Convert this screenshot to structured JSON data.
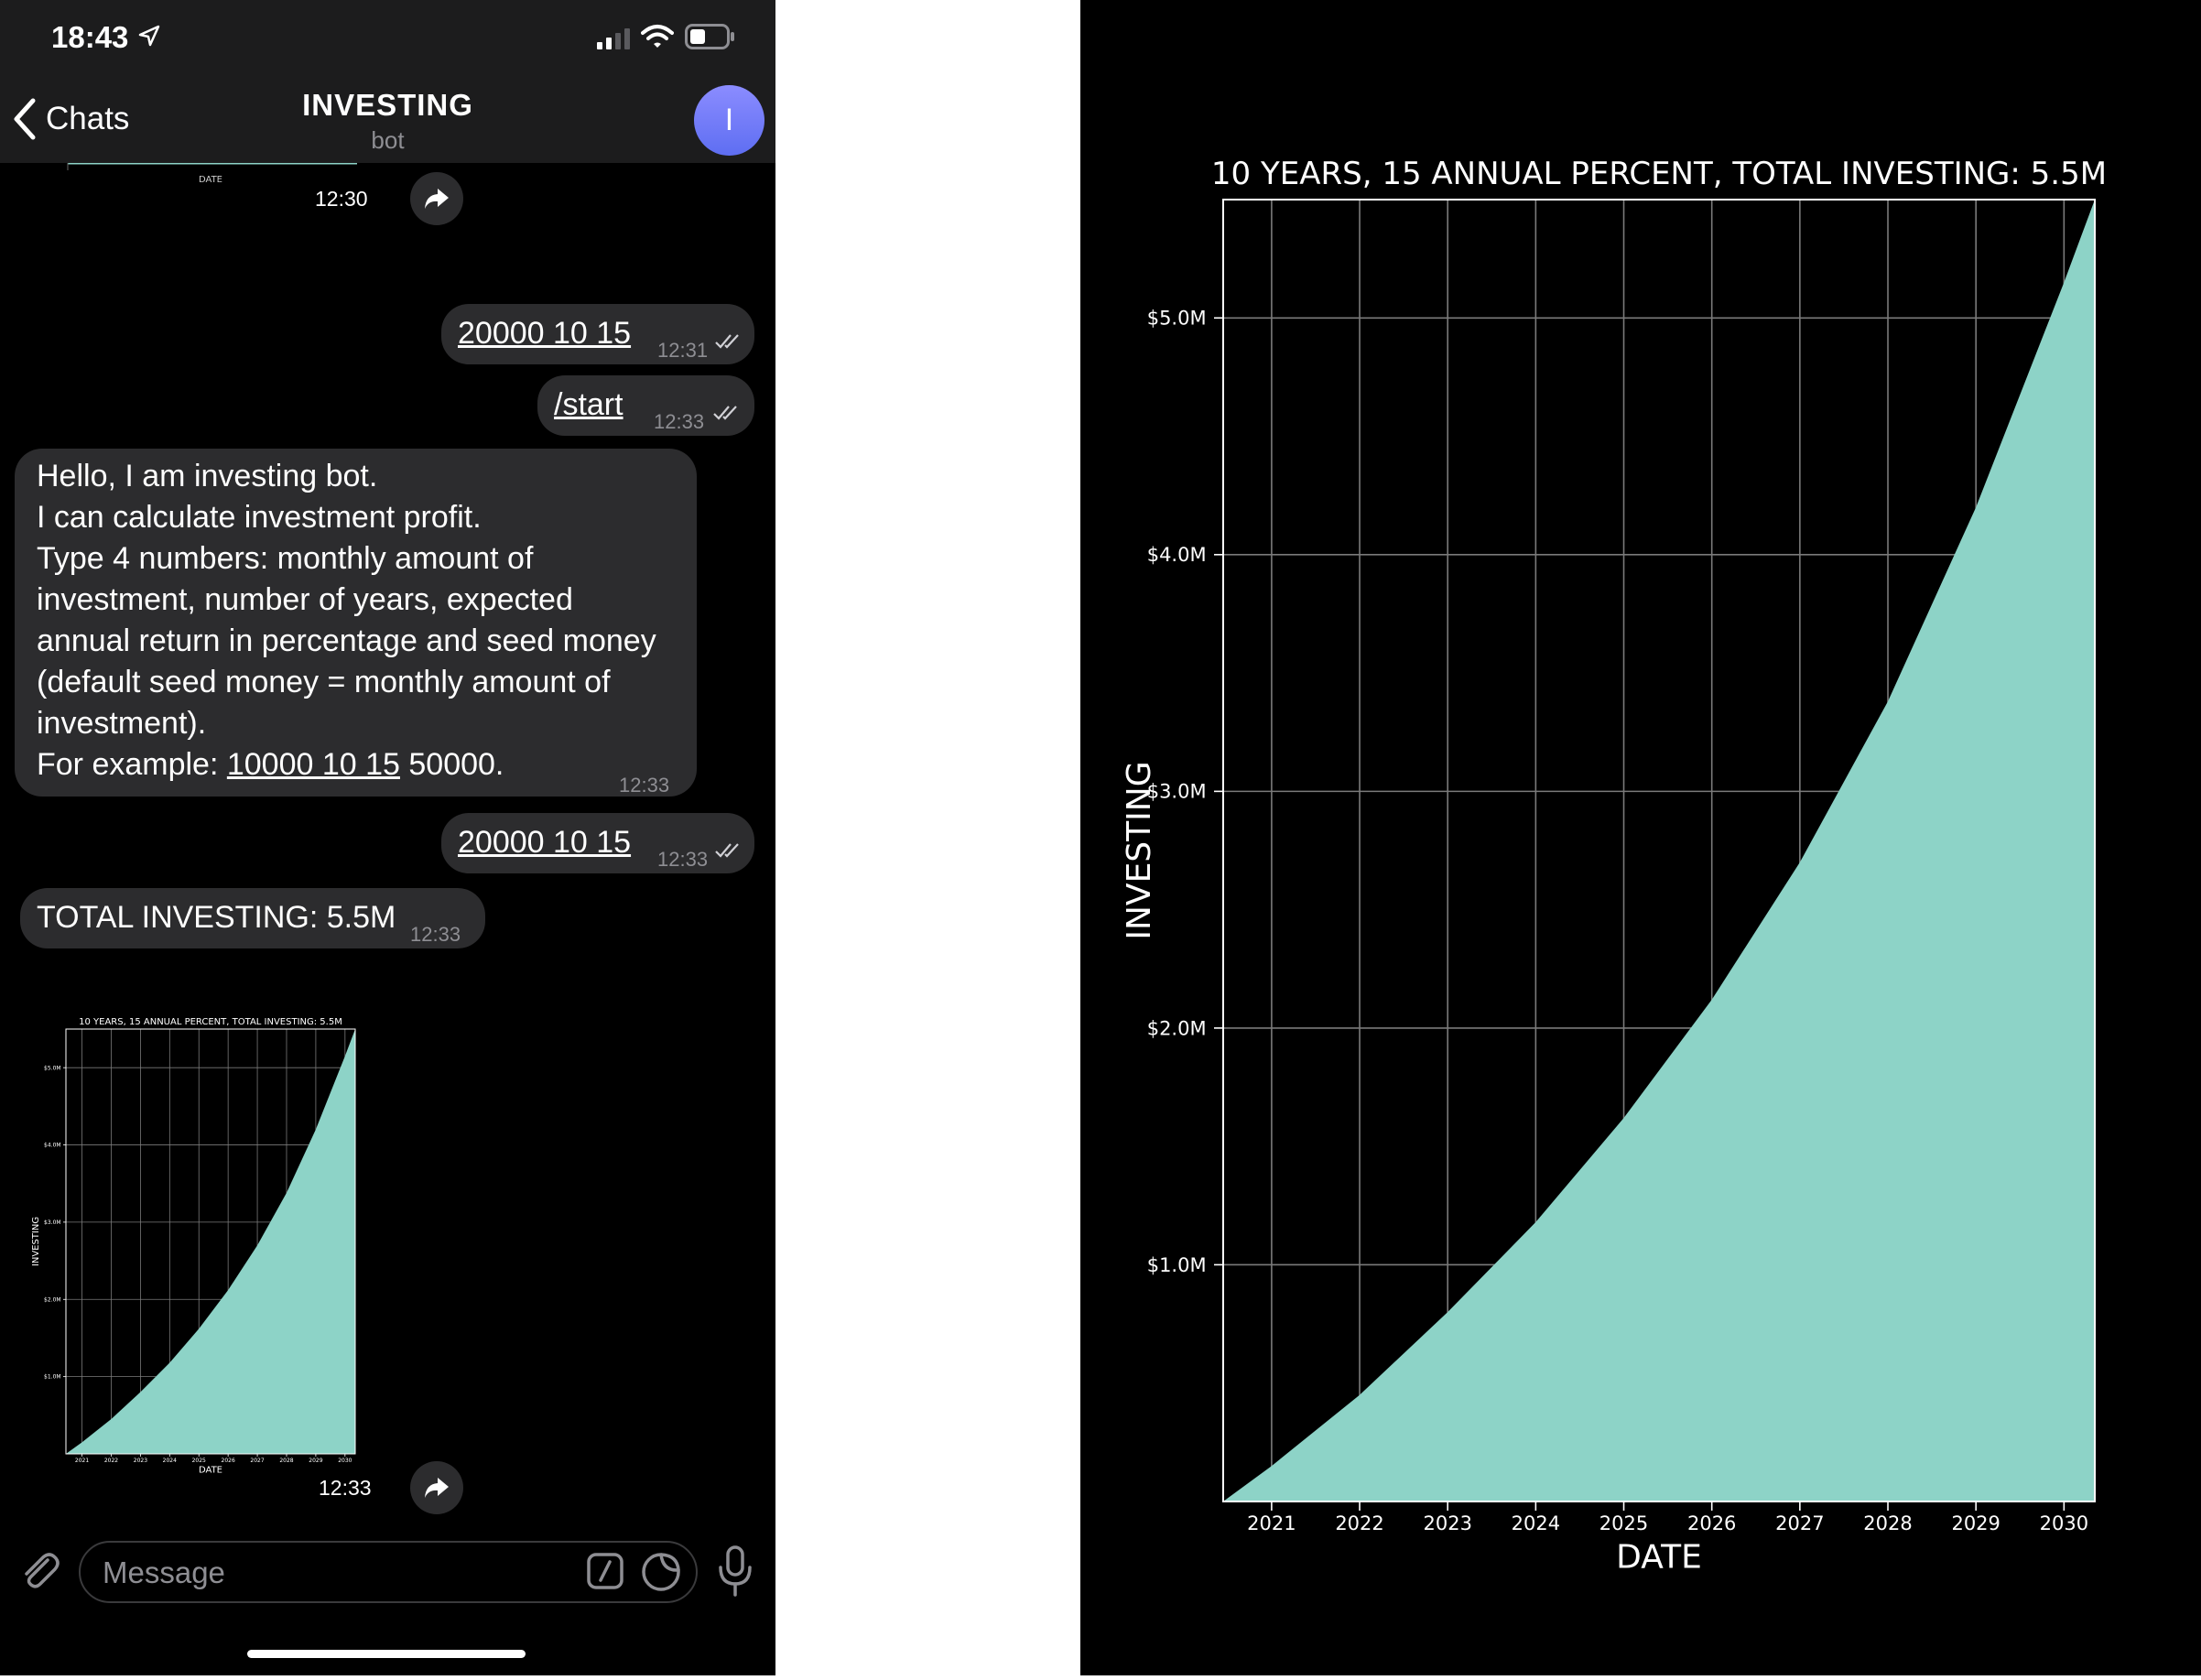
{
  "status_bar": {
    "time": "18:43"
  },
  "header": {
    "back_label": "Chats",
    "title": "INVESTING",
    "subtitle": "bot",
    "avatar_letter": "I"
  },
  "messages": [
    {
      "type": "image",
      "time": "12:30"
    },
    {
      "type": "outgoing",
      "text": "20000 10 15",
      "time": "12:31"
    },
    {
      "type": "outgoing",
      "text": "/start",
      "time": "12:33"
    },
    {
      "type": "incoming",
      "lines": [
        "Hello, I am investing bot.",
        "I can calculate investment profit.",
        "Type 4 numbers: monthly amount of",
        "investment, number of years, expected",
        "annual return in percentage and seed money",
        "(default seed money = monthly amount of",
        "investment)."
      ],
      "example_prefix": "For example: ",
      "example_link": "10000 10 15",
      "example_suffix": " 50000.",
      "time": "12:33"
    },
    {
      "type": "outgoing",
      "text": "20000 10 15",
      "time": "12:33"
    },
    {
      "type": "incoming",
      "text": "TOTAL INVESTING: 5.5M",
      "time": "12:33"
    },
    {
      "type": "image",
      "time": "12:33"
    }
  ],
  "composer": {
    "placeholder": "Message"
  },
  "colors": {
    "fill": "#8dd3c7",
    "bubble": "#2c2c2e",
    "avatar": "#6f78f5"
  },
  "icons": [
    "location-arrow-icon",
    "signal-icon",
    "wifi-icon",
    "battery-icon",
    "back-chevron-icon",
    "share-icon",
    "attach-icon",
    "command-icon",
    "sticker-icon",
    "mic-icon"
  ],
  "chart_data": {
    "type": "area",
    "title": "10 YEARS, 15 ANNUAL PERCENT, TOTAL INVESTING: 5.5M",
    "xlabel": "DATE",
    "ylabel": "INVESTING",
    "x_ticks": [
      "2021",
      "2022",
      "2023",
      "2024",
      "2025",
      "2026",
      "2027",
      "2028",
      "2029",
      "2030"
    ],
    "y_ticks": [
      "$1.0M",
      "$2.0M",
      "$3.0M",
      "$4.0M",
      "$5.0M"
    ],
    "y_tick_values": [
      1.0,
      2.0,
      3.0,
      4.0,
      5.0
    ],
    "xlim": [
      2020.45,
      2030.35
    ],
    "ylim": [
      0,
      5.5
    ],
    "grid": true,
    "series": [
      {
        "x": [
          2020.45,
          2021,
          2022,
          2023,
          2024,
          2025,
          2026,
          2027,
          2028,
          2029,
          2030,
          2030.35
        ],
        "values": [
          0.0,
          0.15,
          0.45,
          0.8,
          1.18,
          1.62,
          2.12,
          2.7,
          3.38,
          4.2,
          5.15,
          5.5
        ]
      }
    ]
  }
}
